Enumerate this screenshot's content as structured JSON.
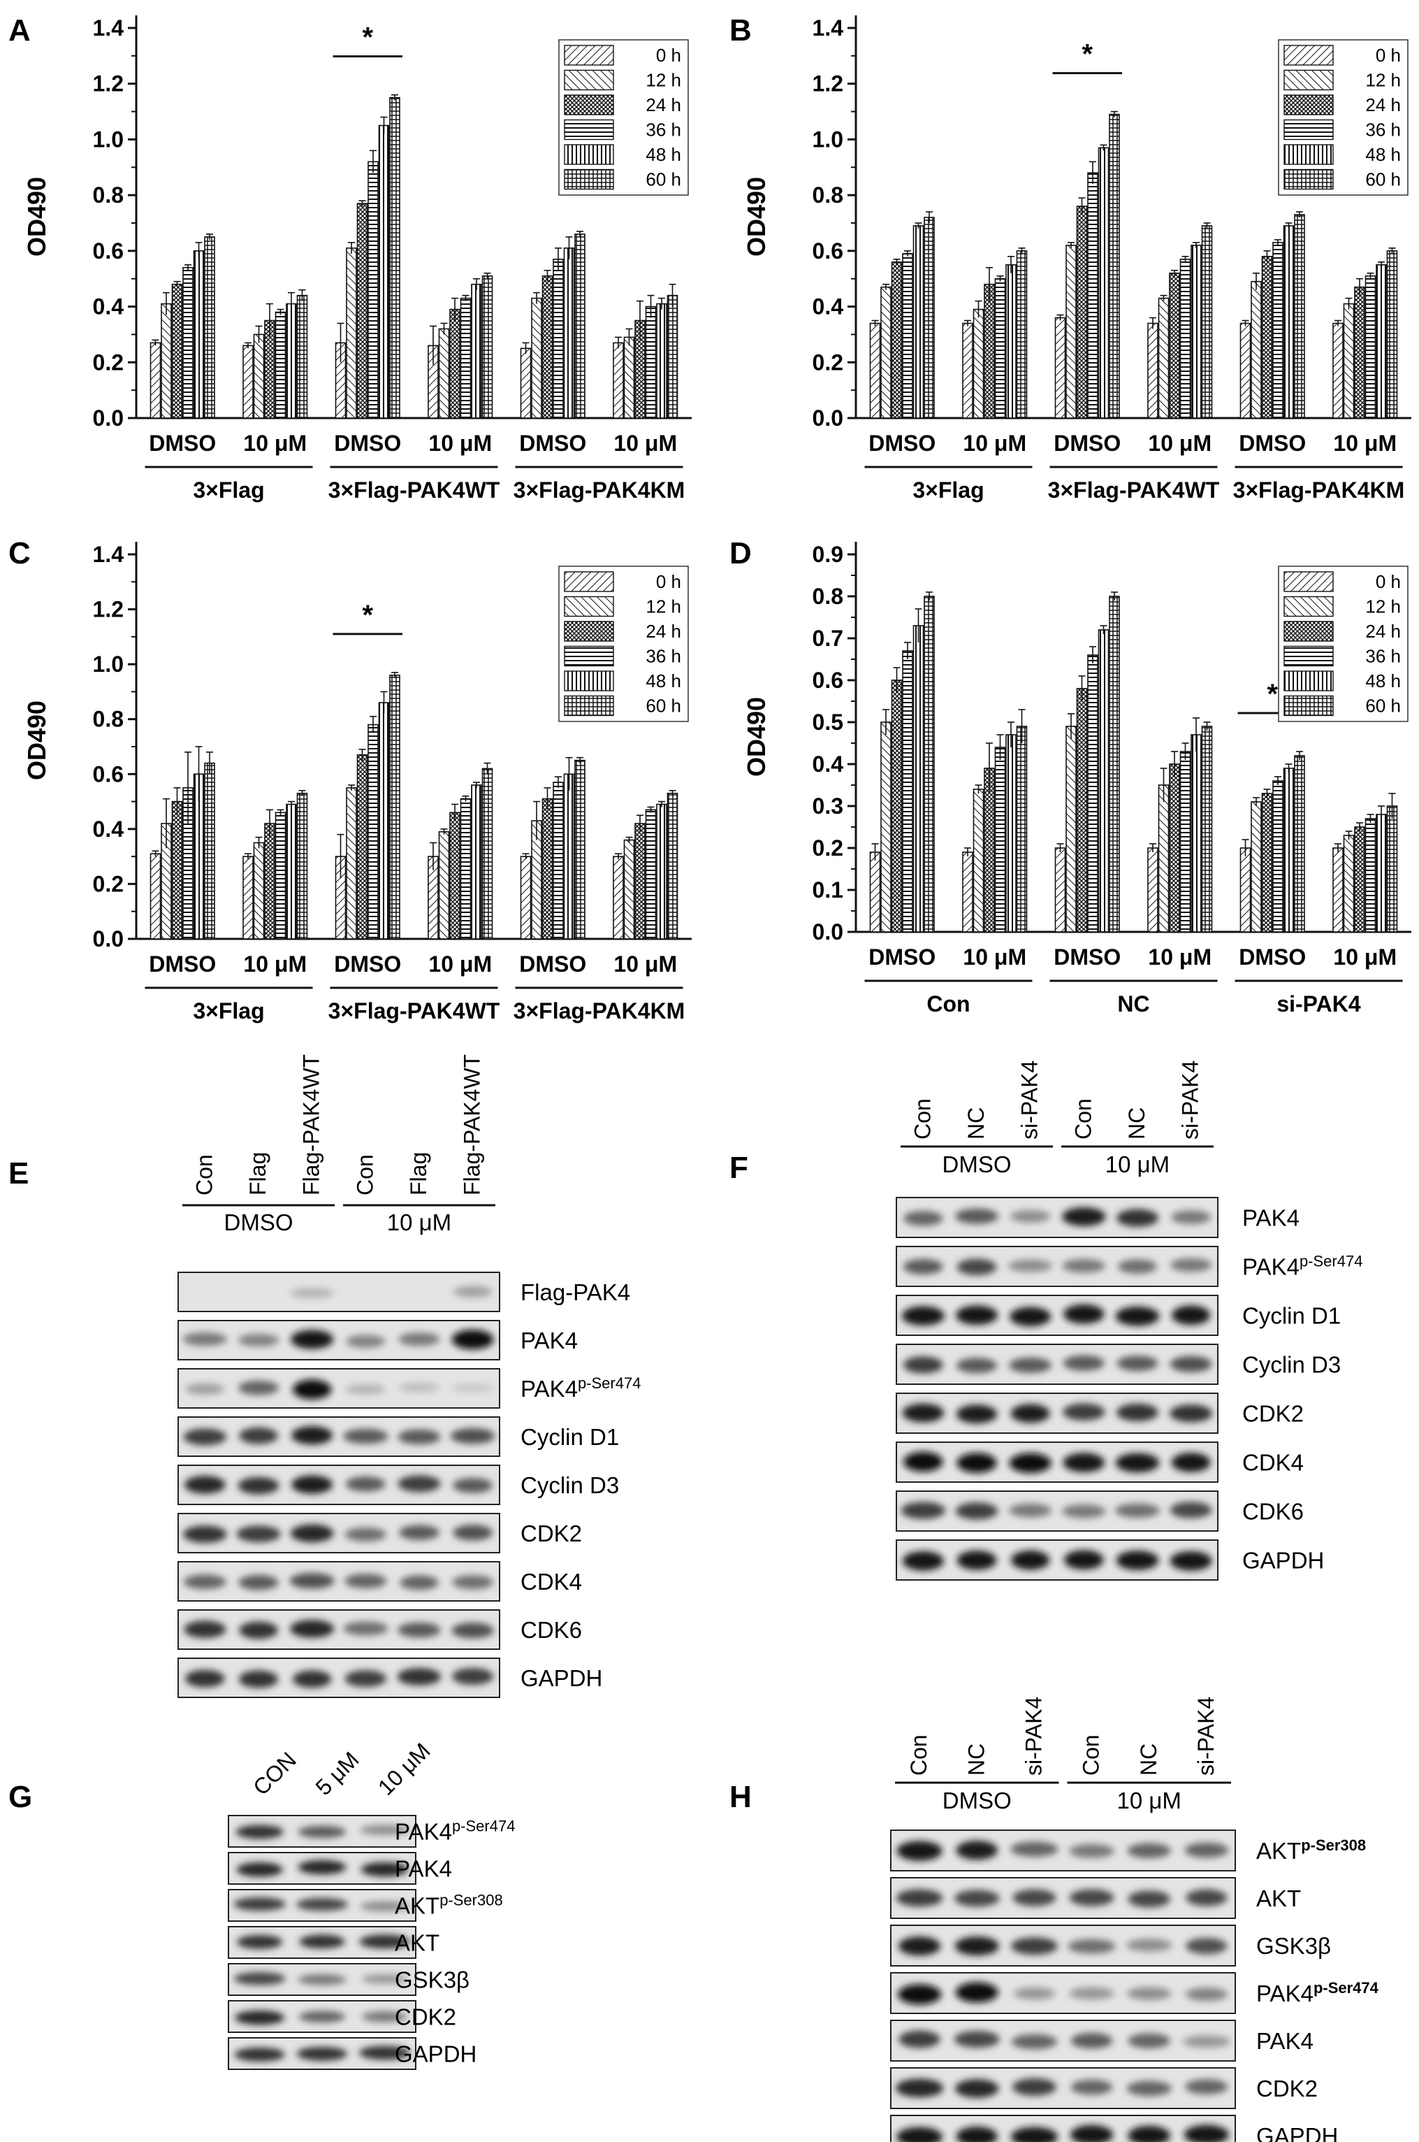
{
  "panels": [
    {
      "letter": "A"
    },
    {
      "letter": "B"
    },
    {
      "letter": "C"
    },
    {
      "letter": "D"
    },
    {
      "letter": "E"
    },
    {
      "letter": "F"
    },
    {
      "letter": "G"
    },
    {
      "letter": "H"
    }
  ],
  "chart_common": {
    "ylabel": "OD490",
    "legend": [
      "0 h",
      "12 h",
      "24 h",
      "36 h",
      "48 h",
      "60 h"
    ],
    "significance_mark": "*",
    "treatments": [
      "DMSO",
      "10 μM"
    ]
  },
  "chart_data": [
    {
      "id": "A",
      "type": "bar",
      "ylabel": "OD490",
      "ylim": [
        0,
        1.4
      ],
      "yticks": [
        "0.0",
        "0.2",
        "0.4",
        "0.6",
        "0.8",
        "1.0",
        "1.2",
        "1.4"
      ],
      "legend_position": "top-right",
      "grid": false,
      "groups": [
        "3×Flag",
        "3×Flag-PAK4WT",
        "3×Flag-PAK4KM"
      ],
      "categories": [
        "DMSO",
        "10 μM",
        "DMSO",
        "10 μM",
        "DMSO",
        "10 μM"
      ],
      "series": [
        {
          "name": "0 h",
          "values": [
            0.27,
            0.26,
            0.27,
            0.26,
            0.25,
            0.27
          ],
          "errors": [
            0.01,
            0.01,
            0.07,
            0.07,
            0.02,
            0.02
          ]
        },
        {
          "name": "12 h",
          "values": [
            0.41,
            0.3,
            0.61,
            0.32,
            0.43,
            0.29
          ],
          "errors": [
            0.04,
            0.03,
            0.02,
            0.02,
            0.02,
            0.03
          ]
        },
        {
          "name": "24 h",
          "values": [
            0.48,
            0.35,
            0.77,
            0.39,
            0.51,
            0.35
          ],
          "errors": [
            0.01,
            0.06,
            0.01,
            0.04,
            0.02,
            0.07
          ]
        },
        {
          "name": "36 h",
          "values": [
            0.54,
            0.38,
            0.92,
            0.43,
            0.57,
            0.4
          ],
          "errors": [
            0.01,
            0.01,
            0.04,
            0.01,
            0.04,
            0.04
          ]
        },
        {
          "name": "48 h",
          "values": [
            0.6,
            0.41,
            1.05,
            0.48,
            0.61,
            0.41
          ],
          "errors": [
            0.03,
            0.04,
            0.03,
            0.02,
            0.04,
            0.02
          ]
        },
        {
          "name": "60 h",
          "values": [
            0.65,
            0.44,
            1.15,
            0.51,
            0.66,
            0.44
          ],
          "errors": [
            0.01,
            0.02,
            0.01,
            0.01,
            0.01,
            0.04
          ]
        }
      ],
      "significance": {
        "label": "*",
        "category_index": 2
      }
    },
    {
      "id": "B",
      "type": "bar",
      "ylabel": "OD490",
      "ylim": [
        0,
        1.4
      ],
      "yticks": [
        "0.0",
        "0.2",
        "0.4",
        "0.6",
        "0.8",
        "1.0",
        "1.2",
        "1.4"
      ],
      "legend_position": "top-right",
      "grid": false,
      "groups": [
        "3×Flag",
        "3×Flag-PAK4WT",
        "3×Flag-PAK4KM"
      ],
      "categories": [
        "DMSO",
        "10 μM",
        "DMSO",
        "10 μM",
        "DMSO",
        "10 μM"
      ],
      "series": [
        {
          "name": "0 h",
          "values": [
            0.34,
            0.34,
            0.36,
            0.34,
            0.34,
            0.34
          ],
          "errors": [
            0.01,
            0.01,
            0.01,
            0.02,
            0.01,
            0.01
          ]
        },
        {
          "name": "12 h",
          "values": [
            0.47,
            0.39,
            0.62,
            0.43,
            0.49,
            0.41
          ],
          "errors": [
            0.01,
            0.03,
            0.01,
            0.01,
            0.03,
            0.02
          ]
        },
        {
          "name": "24 h",
          "values": [
            0.56,
            0.48,
            0.76,
            0.52,
            0.58,
            0.47
          ],
          "errors": [
            0.01,
            0.06,
            0.03,
            0.01,
            0.02,
            0.03
          ]
        },
        {
          "name": "36 h",
          "values": [
            0.59,
            0.5,
            0.88,
            0.57,
            0.63,
            0.51
          ],
          "errors": [
            0.01,
            0.01,
            0.04,
            0.01,
            0.01,
            0.01
          ]
        },
        {
          "name": "48 h",
          "values": [
            0.69,
            0.55,
            0.97,
            0.62,
            0.69,
            0.55
          ],
          "errors": [
            0.01,
            0.03,
            0.01,
            0.01,
            0.01,
            0.01
          ]
        },
        {
          "name": "60 h",
          "values": [
            0.72,
            0.6,
            1.09,
            0.69,
            0.73,
            0.6
          ],
          "errors": [
            0.02,
            0.01,
            0.01,
            0.01,
            0.01,
            0.01
          ]
        }
      ],
      "significance": {
        "label": "*",
        "category_index": 2
      }
    },
    {
      "id": "C",
      "type": "bar",
      "ylabel": "OD490",
      "ylim": [
        0,
        1.4
      ],
      "yticks": [
        "0.0",
        "0.2",
        "0.4",
        "0.6",
        "0.8",
        "1.0",
        "1.2",
        "1.4"
      ],
      "legend_position": "top-right",
      "grid": false,
      "groups": [
        "3×Flag",
        "3×Flag-PAK4WT",
        "3×Flag-PAK4KM"
      ],
      "categories": [
        "DMSO",
        "10 μM",
        "DMSO",
        "10 μM",
        "DMSO",
        "10 μM"
      ],
      "series": [
        {
          "name": "0 h",
          "values": [
            0.31,
            0.3,
            0.3,
            0.3,
            0.3,
            0.3
          ],
          "errors": [
            0.01,
            0.01,
            0.08,
            0.05,
            0.01,
            0.01
          ]
        },
        {
          "name": "12 h",
          "values": [
            0.42,
            0.35,
            0.55,
            0.39,
            0.43,
            0.36
          ],
          "errors": [
            0.09,
            0.02,
            0.01,
            0.01,
            0.07,
            0.01
          ]
        },
        {
          "name": "24 h",
          "values": [
            0.5,
            0.42,
            0.67,
            0.46,
            0.51,
            0.42
          ],
          "errors": [
            0.05,
            0.05,
            0.02,
            0.03,
            0.04,
            0.03
          ]
        },
        {
          "name": "36 h",
          "values": [
            0.55,
            0.46,
            0.78,
            0.51,
            0.57,
            0.47
          ],
          "errors": [
            0.13,
            0.01,
            0.03,
            0.01,
            0.02,
            0.01
          ]
        },
        {
          "name": "48 h",
          "values": [
            0.6,
            0.49,
            0.86,
            0.56,
            0.6,
            0.49
          ],
          "errors": [
            0.1,
            0.01,
            0.04,
            0.01,
            0.06,
            0.01
          ]
        },
        {
          "name": "60 h",
          "values": [
            0.64,
            0.53,
            0.96,
            0.62,
            0.65,
            0.53
          ],
          "errors": [
            0.04,
            0.01,
            0.01,
            0.02,
            0.01,
            0.01
          ]
        }
      ],
      "significance": {
        "label": "*",
        "category_index": 2
      }
    },
    {
      "id": "D",
      "type": "bar",
      "ylabel": "OD490",
      "ylim": [
        0,
        0.9
      ],
      "yticks": [
        "0.0",
        "0.1",
        "0.2",
        "0.3",
        "0.4",
        "0.5",
        "0.6",
        "0.7",
        "0.8",
        "0.9"
      ],
      "legend_position": "top-right",
      "grid": false,
      "groups": [
        "Con",
        "NC",
        "si-PAK4"
      ],
      "categories": [
        "DMSO",
        "10 μM",
        "DMSO",
        "10 μM",
        "DMSO",
        "10 μM"
      ],
      "series": [
        {
          "name": "0 h",
          "values": [
            0.19,
            0.19,
            0.2,
            0.2,
            0.2,
            0.2
          ],
          "errors": [
            0.02,
            0.01,
            0.01,
            0.01,
            0.02,
            0.01
          ]
        },
        {
          "name": "12 h",
          "values": [
            0.5,
            0.34,
            0.49,
            0.35,
            0.31,
            0.23
          ],
          "errors": [
            0.03,
            0.01,
            0.03,
            0.04,
            0.01,
            0.01
          ]
        },
        {
          "name": "24 h",
          "values": [
            0.6,
            0.39,
            0.58,
            0.4,
            0.33,
            0.25
          ],
          "errors": [
            0.03,
            0.06,
            0.03,
            0.03,
            0.01,
            0.01
          ]
        },
        {
          "name": "36 h",
          "values": [
            0.67,
            0.44,
            0.66,
            0.43,
            0.36,
            0.27
          ],
          "errors": [
            0.02,
            0.03,
            0.02,
            0.02,
            0.01,
            0.01
          ]
        },
        {
          "name": "48 h",
          "values": [
            0.73,
            0.47,
            0.72,
            0.47,
            0.39,
            0.28
          ],
          "errors": [
            0.04,
            0.03,
            0.01,
            0.04,
            0.01,
            0.02
          ]
        },
        {
          "name": "60 h",
          "values": [
            0.8,
            0.49,
            0.8,
            0.49,
            0.42,
            0.3
          ],
          "errors": [
            0.01,
            0.04,
            0.01,
            0.01,
            0.01,
            0.03
          ]
        }
      ],
      "significance": {
        "label": "*",
        "category_index": 4
      }
    }
  ],
  "blots": {
    "E": {
      "lanes": [
        "Con",
        "Flag",
        "Flag-PAK4WT",
        "Con",
        "Flag",
        "Flag-PAK4WT"
      ],
      "groups": [
        "DMSO",
        "10 μM"
      ],
      "rows": [
        {
          "label": "Flag-PAK4",
          "sup": "",
          "bands": [
            0.0,
            0.0,
            0.15,
            0.0,
            0.0,
            0.25
          ]
        },
        {
          "label": "PAK4",
          "sup": "",
          "bands": [
            0.45,
            0.4,
            0.95,
            0.4,
            0.45,
            1.0
          ]
        },
        {
          "label": "PAK4",
          "sup": "p-Ser474",
          "bands": [
            0.25,
            0.55,
            1.0,
            0.15,
            0.1,
            0.05
          ]
        },
        {
          "label": "Cyclin D1",
          "sup": "",
          "bands": [
            0.75,
            0.75,
            0.9,
            0.6,
            0.6,
            0.65
          ]
        },
        {
          "label": "Cyclin D3",
          "sup": "",
          "bands": [
            0.85,
            0.8,
            0.9,
            0.6,
            0.75,
            0.6
          ]
        },
        {
          "label": "CDK2",
          "sup": "",
          "bands": [
            0.8,
            0.75,
            0.85,
            0.5,
            0.6,
            0.65
          ]
        },
        {
          "label": "CDK4",
          "sup": "",
          "bands": [
            0.55,
            0.6,
            0.65,
            0.55,
            0.55,
            0.5
          ]
        },
        {
          "label": "CDK6",
          "sup": "",
          "bands": [
            0.8,
            0.8,
            0.85,
            0.5,
            0.6,
            0.65
          ]
        },
        {
          "label": "GAPDH",
          "sup": "",
          "bands": [
            0.8,
            0.8,
            0.8,
            0.75,
            0.8,
            0.75
          ]
        }
      ]
    },
    "F": {
      "lanes": [
        "Con",
        "NC",
        "si-PAK4",
        "Con",
        "NC",
        "si-PAK4"
      ],
      "groups": [
        "DMSO",
        "10 μM"
      ],
      "rows": [
        {
          "label": "PAK4",
          "sup": "",
          "bands": [
            0.55,
            0.6,
            0.35,
            0.9,
            0.8,
            0.45
          ]
        },
        {
          "label": "PAK4",
          "sup": "p-Ser474",
          "bands": [
            0.6,
            0.7,
            0.35,
            0.45,
            0.5,
            0.45
          ]
        },
        {
          "label": "Cyclin D1",
          "sup": "",
          "bands": [
            0.95,
            0.95,
            0.95,
            0.95,
            0.95,
            0.95
          ]
        },
        {
          "label": "Cyclin D3",
          "sup": "",
          "bands": [
            0.75,
            0.6,
            0.6,
            0.6,
            0.6,
            0.65
          ]
        },
        {
          "label": "CDK2",
          "sup": "",
          "bands": [
            0.9,
            0.9,
            0.9,
            0.75,
            0.8,
            0.8
          ]
        },
        {
          "label": "CDK4",
          "sup": "",
          "bands": [
            1.0,
            1.0,
            1.0,
            0.95,
            0.95,
            0.95
          ]
        },
        {
          "label": "CDK6",
          "sup": "",
          "bands": [
            0.75,
            0.75,
            0.45,
            0.45,
            0.5,
            0.7
          ]
        },
        {
          "label": "GAPDH",
          "sup": "",
          "bands": [
            0.95,
            0.95,
            0.95,
            0.95,
            0.95,
            0.95
          ]
        }
      ]
    },
    "G": {
      "lanes": [
        "CON",
        "5 μM",
        "10 μM"
      ],
      "rows": [
        {
          "label": "PAK4",
          "sup": "p-Ser474",
          "bands": [
            0.8,
            0.6,
            0.35
          ]
        },
        {
          "label": "PAK4",
          "sup": "",
          "bands": [
            0.85,
            0.85,
            0.85
          ]
        },
        {
          "label": "AKT",
          "sup": "p-Ser308",
          "bands": [
            0.75,
            0.7,
            0.35
          ]
        },
        {
          "label": "AKT",
          "sup": "",
          "bands": [
            0.8,
            0.8,
            0.8
          ]
        },
        {
          "label": "GSK3β",
          "sup": "",
          "bands": [
            0.7,
            0.45,
            0.3
          ]
        },
        {
          "label": "CDK2",
          "sup": "",
          "bands": [
            0.85,
            0.55,
            0.45
          ]
        },
        {
          "label": "GAPDH",
          "sup": "",
          "bands": [
            0.8,
            0.8,
            0.8
          ]
        }
      ]
    },
    "H": {
      "lanes": [
        "Con",
        "NC",
        "si-PAK4",
        "Con",
        "NC",
        "si-PAK4"
      ],
      "groups": [
        "DMSO",
        "10 μM"
      ],
      "rows": [
        {
          "label": "AKT",
          "sup": "p-Ser308",
          "bands": [
            0.95,
            0.9,
            0.55,
            0.45,
            0.55,
            0.55
          ]
        },
        {
          "label": "AKT",
          "sup": "",
          "bands": [
            0.75,
            0.7,
            0.7,
            0.7,
            0.7,
            0.7
          ]
        },
        {
          "label": "GSK3β",
          "sup": "",
          "bands": [
            0.9,
            0.9,
            0.75,
            0.5,
            0.35,
            0.65
          ]
        },
        {
          "label": "PAK4",
          "sup": "p-Ser474",
          "bands": [
            1.0,
            1.0,
            0.3,
            0.3,
            0.35,
            0.4
          ]
        },
        {
          "label": "PAK4",
          "sup": "",
          "bands": [
            0.75,
            0.7,
            0.55,
            0.6,
            0.55,
            0.3
          ]
        },
        {
          "label": "CDK2",
          "sup": "",
          "bands": [
            0.85,
            0.85,
            0.75,
            0.55,
            0.55,
            0.55
          ]
        },
        {
          "label": "GAPDH",
          "sup": "",
          "bands": [
            0.95,
            0.95,
            0.95,
            0.95,
            0.95,
            0.95
          ]
        }
      ]
    }
  }
}
